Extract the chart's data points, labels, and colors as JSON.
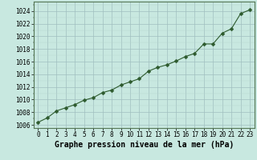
{
  "x": [
    0,
    1,
    2,
    3,
    4,
    5,
    6,
    7,
    8,
    9,
    10,
    11,
    12,
    13,
    14,
    15,
    16,
    17,
    18,
    19,
    20,
    21,
    22,
    23
  ],
  "y": [
    1006.4,
    1007.1,
    1008.2,
    1008.7,
    1009.2,
    1009.9,
    1010.3,
    1011.1,
    1011.5,
    1012.3,
    1012.8,
    1013.3,
    1014.5,
    1015.1,
    1015.5,
    1016.1,
    1016.8,
    1017.3,
    1018.8,
    1018.8,
    1020.5,
    1021.2,
    1023.6,
    1024.2
  ],
  "line_color": "#2d5a2d",
  "marker_color": "#2d5a2d",
  "bg_color": "#c8e8e0",
  "grid_major_color": "#a0bfbf",
  "grid_minor_color": "#b8d8d0",
  "xlabel": "Graphe pression niveau de la mer (hPa)",
  "xlim_min": -0.5,
  "xlim_max": 23.5,
  "ylim_min": 1005.5,
  "ylim_max": 1025.5,
  "yticks": [
    1006,
    1008,
    1010,
    1012,
    1014,
    1016,
    1018,
    1020,
    1022,
    1024
  ],
  "xticks": [
    0,
    1,
    2,
    3,
    4,
    5,
    6,
    7,
    8,
    9,
    10,
    11,
    12,
    13,
    14,
    15,
    16,
    17,
    18,
    19,
    20,
    21,
    22,
    23
  ],
  "tick_fontsize": 5.5,
  "xlabel_fontsize": 7,
  "line_width": 0.8,
  "marker_size": 2.5,
  "marker_style": "D"
}
